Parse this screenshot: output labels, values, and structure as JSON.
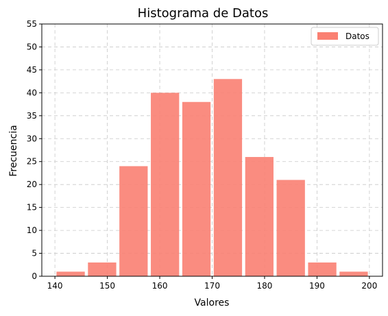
{
  "chart_data": {
    "type": "bar",
    "title": "Histograma de Datos",
    "xlabel": "Valores",
    "ylabel": "Frecuencia",
    "bins": [
      {
        "start": 140.0,
        "end": 146.0,
        "count": 1
      },
      {
        "start": 146.0,
        "end": 152.0,
        "count": 3
      },
      {
        "start": 152.0,
        "end": 158.0,
        "count": 24
      },
      {
        "start": 158.0,
        "end": 164.0,
        "count": 40
      },
      {
        "start": 164.0,
        "end": 170.0,
        "count": 38
      },
      {
        "start": 170.0,
        "end": 176.0,
        "count": 43
      },
      {
        "start": 176.0,
        "end": 182.0,
        "count": 26
      },
      {
        "start": 182.0,
        "end": 188.0,
        "count": 21
      },
      {
        "start": 188.0,
        "end": 194.0,
        "count": 3
      },
      {
        "start": 194.0,
        "end": 200.0,
        "count": 1
      }
    ],
    "series": [
      {
        "name": "Datos",
        "color": "#fa8072"
      }
    ],
    "xlim": [
      137.5,
      202.5
    ],
    "ylim": [
      0,
      55
    ],
    "xticks": [
      140,
      150,
      160,
      170,
      180,
      190,
      200
    ],
    "yticks": [
      0,
      5,
      10,
      15,
      20,
      25,
      30,
      35,
      40,
      45,
      50,
      55
    ],
    "grid": true,
    "legend_position": "top-right"
  }
}
